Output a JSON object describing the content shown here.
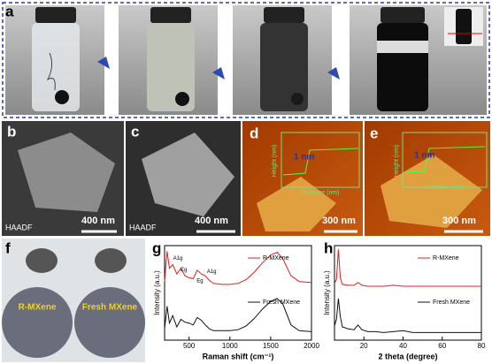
{
  "figure": {
    "a": {
      "label": "a"
    },
    "b": {
      "label": "b",
      "tag": "HAADF",
      "scale": "400 nm"
    },
    "c": {
      "label": "c",
      "tag": "HAADF",
      "scale": "400 nm"
    },
    "d": {
      "label": "d",
      "y_axis": "Height (nm)",
      "step": "1 nm",
      "x_axis": "Distance (nm)",
      "scale": "300 nm"
    },
    "e": {
      "label": "e",
      "y_axis": "Height (nm)",
      "step": "1 nm",
      "x_axis": "Distance (nm)",
      "scale": "300 nm"
    },
    "f": {
      "label": "f",
      "left": "R-MXene",
      "right": "Fresh MXene"
    },
    "g": {
      "label": "g"
    },
    "h": {
      "label": "h"
    }
  },
  "chart_data": [
    {
      "type": "line",
      "xlabel": "Raman shift (cm⁻¹)",
      "ylabel": "Intensity (a.u.)",
      "x": [
        200,
        230,
        260,
        300,
        350,
        400,
        450,
        500,
        550,
        600,
        650,
        700,
        750,
        800,
        900,
        1000,
        1100,
        1200,
        1300,
        1400,
        1500,
        1580,
        1650,
        1750,
        1850,
        2000
      ],
      "series": [
        {
          "name": "R-MXene",
          "color": "#e02020",
          "values": [
            6.2,
            9.4,
            7.6,
            8.0,
            7.0,
            7.6,
            6.8,
            6.6,
            6.5,
            7.4,
            7.0,
            6.8,
            6.3,
            6.0,
            5.9,
            5.9,
            6.0,
            6.4,
            7.2,
            8.2,
            9.0,
            9.3,
            8.6,
            6.8,
            6.2,
            6.1
          ]
        },
        {
          "name": "Fresh MXene",
          "color": "#111111",
          "values": [
            1.2,
            3.6,
            1.8,
            2.6,
            1.4,
            2.2,
            1.9,
            1.8,
            1.6,
            2.4,
            2.1,
            1.6,
            1.2,
            1.0,
            1.0,
            1.0,
            1.1,
            1.5,
            2.3,
            3.3,
            4.1,
            4.4,
            3.8,
            1.6,
            1.0,
            0.9
          ]
        }
      ],
      "annotations": [
        "A1g",
        "Eg",
        "Eg",
        "A1g"
      ],
      "xlim": [
        200,
        2000
      ],
      "ylim": [
        0,
        10
      ],
      "xticks": [
        500,
        1000,
        1500,
        2000
      ]
    },
    {
      "type": "line",
      "xlabel": "2 theta (degree)",
      "ylabel": "Intensity (a.u.)",
      "x": [
        5,
        6,
        7,
        8,
        9,
        12,
        15,
        17,
        19,
        22,
        26,
        30,
        35,
        40,
        45,
        50,
        55,
        60,
        65,
        70,
        75,
        80
      ],
      "series": [
        {
          "name": "R-MXene",
          "color": "#e02020",
          "values": [
            6.0,
            6.4,
            9.6,
            6.6,
            5.9,
            5.8,
            5.8,
            6.1,
            5.8,
            5.7,
            5.7,
            5.7,
            5.8,
            5.7,
            5.7,
            5.7,
            5.7,
            5.7,
            5.7,
            5.7,
            5.7,
            5.7
          ]
        },
        {
          "name": "Fresh MXene",
          "color": "#111111",
          "values": [
            1.5,
            2.2,
            4.4,
            2.5,
            1.4,
            1.2,
            1.1,
            1.6,
            1.1,
            0.9,
            0.9,
            0.8,
            0.9,
            1.0,
            0.8,
            0.8,
            0.8,
            0.8,
            0.8,
            0.8,
            0.8,
            0.8
          ]
        }
      ],
      "xlim": [
        5,
        80
      ],
      "ylim": [
        0,
        10
      ],
      "xticks": [
        20,
        40,
        60,
        80
      ]
    }
  ]
}
